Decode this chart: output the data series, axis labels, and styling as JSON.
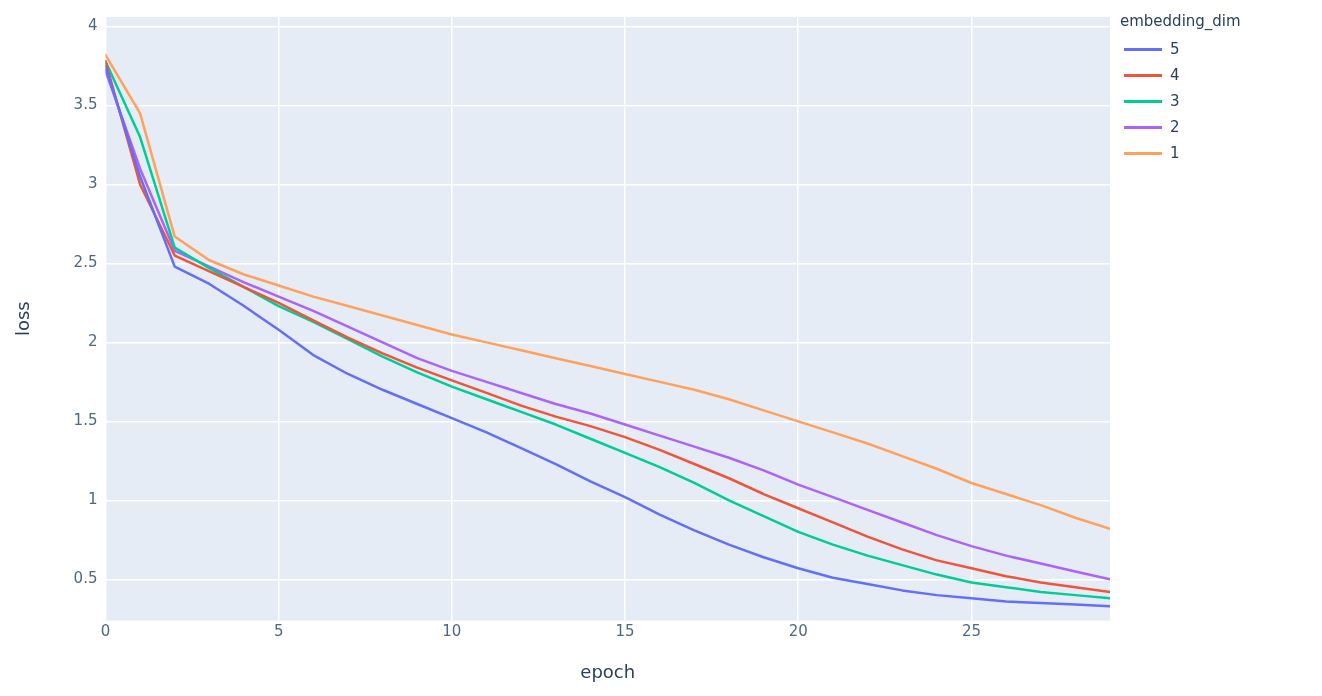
{
  "chart_data": {
    "type": "line",
    "xlabel": "epoch",
    "ylabel": "loss",
    "legend_title": "embedding_dim",
    "legend": "top right",
    "grid": true,
    "marker": "none",
    "line_style": "solid",
    "x": [
      0,
      1,
      2,
      3,
      4,
      5,
      6,
      7,
      8,
      9,
      10,
      11,
      12,
      13,
      14,
      15,
      16,
      17,
      18,
      19,
      20,
      21,
      22,
      23,
      24,
      25,
      26,
      27,
      28,
      29
    ],
    "xlim": [
      0,
      29
    ],
    "xticks": [
      0,
      5,
      10,
      15,
      20,
      25
    ],
    "ylim": [
      0.24,
      4.06
    ],
    "yticks": [
      0.5,
      1,
      1.5,
      2,
      2.5,
      3,
      3.5,
      4
    ],
    "series": [
      {
        "name": "5",
        "color": "#636efa",
        "values": [
          3.75,
          3.05,
          2.48,
          2.37,
          2.23,
          2.08,
          1.92,
          1.8,
          1.7,
          1.61,
          1.52,
          1.43,
          1.33,
          1.23,
          1.12,
          1.02,
          0.91,
          0.81,
          0.72,
          0.64,
          0.57,
          0.51,
          0.47,
          0.43,
          0.4,
          0.38,
          0.36,
          0.35,
          0.34,
          0.33
        ]
      },
      {
        "name": "4",
        "color": "#ef553b",
        "values": [
          3.78,
          3.0,
          2.55,
          2.45,
          2.35,
          2.25,
          2.14,
          2.03,
          1.93,
          1.84,
          1.76,
          1.68,
          1.6,
          1.53,
          1.47,
          1.4,
          1.32,
          1.23,
          1.14,
          1.04,
          0.95,
          0.86,
          0.77,
          0.69,
          0.62,
          0.57,
          0.52,
          0.48,
          0.45,
          0.42
        ]
      },
      {
        "name": "3",
        "color": "#00cc96",
        "values": [
          3.78,
          3.3,
          2.6,
          2.47,
          2.35,
          2.23,
          2.13,
          2.02,
          1.91,
          1.81,
          1.72,
          1.64,
          1.56,
          1.48,
          1.39,
          1.3,
          1.21,
          1.11,
          1.0,
          0.9,
          0.8,
          0.72,
          0.65,
          0.59,
          0.53,
          0.48,
          0.45,
          0.42,
          0.4,
          0.38
        ]
      },
      {
        "name": "2",
        "color": "#ab63fa",
        "values": [
          3.72,
          3.1,
          2.58,
          2.48,
          2.38,
          2.29,
          2.2,
          2.1,
          2.0,
          1.9,
          1.82,
          1.75,
          1.68,
          1.61,
          1.55,
          1.48,
          1.41,
          1.34,
          1.27,
          1.19,
          1.1,
          1.02,
          0.94,
          0.86,
          0.78,
          0.71,
          0.65,
          0.6,
          0.55,
          0.5
        ]
      },
      {
        "name": "1",
        "color": "#ffa15a",
        "values": [
          3.82,
          3.45,
          2.67,
          2.52,
          2.43,
          2.36,
          2.29,
          2.23,
          2.17,
          2.11,
          2.05,
          2.0,
          1.95,
          1.9,
          1.85,
          1.8,
          1.75,
          1.7,
          1.64,
          1.57,
          1.5,
          1.43,
          1.36,
          1.28,
          1.2,
          1.11,
          1.04,
          0.97,
          0.89,
          0.82
        ]
      }
    ]
  }
}
